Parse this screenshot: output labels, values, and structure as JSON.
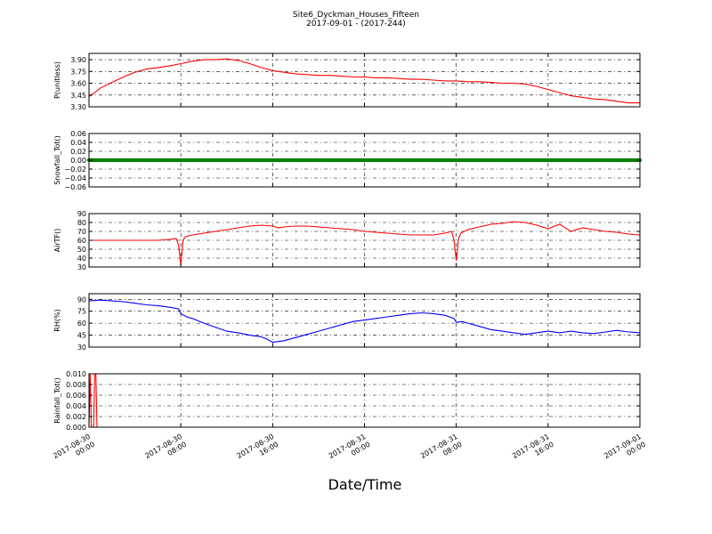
{
  "figure": {
    "title_line1": "Site6_Dyckman_Houses_Fifteen",
    "title_line2": "2017-09-01 - (2017-244)",
    "xlabel": "Date/Time",
    "x_tick_labels": [
      [
        "2017-08-30",
        "00:00"
      ],
      [
        "2017-08-30",
        "08:00"
      ],
      [
        "2017-08-30",
        "16:00"
      ],
      [
        "2017-08-31",
        "00:00"
      ],
      [
        "2017-08-31",
        "08:00"
      ],
      [
        "2017-08-31",
        "16:00"
      ],
      [
        "2017-09-01",
        "00:00"
      ]
    ]
  },
  "chart_data": [
    {
      "type": "line",
      "ylabel": "P(unitless)",
      "color": "#ff0000",
      "ylim": [
        3.3,
        3.98
      ],
      "yticks": [
        3.3,
        3.45,
        3.6,
        3.75,
        3.9
      ],
      "ytick_labels": [
        "3.30",
        "3.45",
        "3.60",
        "3.75",
        "3.90"
      ],
      "xlim_hours": [
        0,
        48
      ],
      "x": [
        0,
        0.5,
        1,
        2,
        3,
        4,
        5,
        6,
        7,
        8,
        9,
        10,
        11,
        12,
        13,
        14,
        15,
        16,
        17,
        18,
        19,
        20,
        21,
        22,
        23,
        24,
        25,
        26,
        27,
        28,
        29,
        30,
        31,
        32,
        33,
        34,
        35,
        36,
        37,
        38,
        39,
        40,
        41,
        42,
        43,
        44,
        45,
        46,
        47,
        48
      ],
      "values": [
        3.43,
        3.48,
        3.54,
        3.61,
        3.68,
        3.74,
        3.78,
        3.8,
        3.82,
        3.85,
        3.88,
        3.9,
        3.9,
        3.91,
        3.89,
        3.85,
        3.8,
        3.76,
        3.74,
        3.72,
        3.71,
        3.7,
        3.7,
        3.69,
        3.68,
        3.68,
        3.67,
        3.67,
        3.66,
        3.65,
        3.65,
        3.64,
        3.63,
        3.63,
        3.62,
        3.62,
        3.61,
        3.6,
        3.6,
        3.59,
        3.56,
        3.52,
        3.48,
        3.44,
        3.42,
        3.4,
        3.39,
        3.37,
        3.35,
        3.35
      ]
    },
    {
      "type": "scatter",
      "ylabel": "Snowfall_Tot()",
      "color": "#008000",
      "ylim": [
        -0.06,
        0.06
      ],
      "yticks": [
        -0.06,
        -0.04,
        -0.02,
        0.0,
        0.02,
        0.04,
        0.06
      ],
      "ytick_labels": [
        "−0.06",
        "−0.04",
        "−0.02",
        "0.00",
        "0.02",
        "0.04",
        "0.06"
      ],
      "xlim_hours": [
        0,
        48
      ],
      "x": [
        0,
        48
      ],
      "values": [
        0.0,
        0.0
      ]
    },
    {
      "type": "line",
      "ylabel": "AirTF()",
      "color": "#ff0000",
      "ylim": [
        30,
        90
      ],
      "yticks": [
        30,
        40,
        50,
        60,
        70,
        80,
        90
      ],
      "ytick_labels": [
        "30",
        "40",
        "50",
        "60",
        "70",
        "80",
        "90"
      ],
      "xlim_hours": [
        0,
        48
      ],
      "x": [
        0,
        1,
        2,
        3,
        4,
        5,
        6,
        7,
        7.6,
        7.8,
        8.0,
        8.2,
        8.4,
        9,
        10,
        11,
        12,
        13,
        14,
        15,
        16,
        16.5,
        17,
        18,
        19,
        20,
        21,
        22,
        23,
        24,
        25,
        26,
        27,
        28,
        29,
        30,
        31,
        31.6,
        31.8,
        32.0,
        32.2,
        32.4,
        33,
        34,
        35,
        36,
        37,
        38,
        39,
        40,
        41,
        42,
        43,
        44,
        45,
        46,
        47,
        48
      ],
      "values": [
        60,
        60,
        60,
        60,
        60,
        60,
        60,
        61,
        62,
        55,
        32,
        60,
        64,
        66,
        68,
        70,
        72,
        74,
        76,
        77,
        76,
        74,
        75,
        76,
        76,
        75,
        74,
        73,
        72,
        70,
        69,
        68,
        67,
        66,
        66,
        66,
        68,
        70,
        60,
        37,
        62,
        68,
        72,
        75,
        78,
        79,
        81,
        80,
        77,
        73,
        78,
        70,
        74,
        72,
        70,
        69,
        67,
        66
      ]
    },
    {
      "type": "line",
      "ylabel": "RH(%)",
      "color": "#0000ff",
      "ylim": [
        30,
        97
      ],
      "yticks": [
        30,
        45,
        60,
        75,
        90
      ],
      "ytick_labels": [
        "30",
        "45",
        "60",
        "75",
        "90"
      ],
      "xlim_hours": [
        0,
        48
      ],
      "x": [
        0,
        1,
        2,
        3,
        4,
        5,
        6,
        7,
        7.8,
        8.0,
        8.5,
        9,
        10,
        11,
        12,
        13,
        14,
        15,
        15.5,
        16,
        17,
        18,
        19,
        20,
        21,
        22,
        23,
        24,
        25,
        26,
        27,
        28,
        29,
        30,
        31,
        31.8,
        32.0,
        32.5,
        33,
        34,
        35,
        36,
        37,
        38,
        39,
        40,
        41,
        42,
        43,
        44,
        45,
        46,
        47,
        48
      ],
      "values": [
        88,
        89,
        88,
        87,
        85,
        83,
        82,
        80,
        78,
        72,
        68,
        66,
        60,
        55,
        50,
        48,
        45,
        43,
        40,
        36,
        38,
        42,
        46,
        50,
        54,
        58,
        62,
        64,
        66,
        68,
        70,
        72,
        73,
        72,
        70,
        66,
        61,
        62,
        60,
        56,
        52,
        50,
        48,
        46,
        48,
        50,
        48,
        50,
        48,
        47,
        49,
        51,
        49,
        48
      ]
    },
    {
      "type": "line",
      "ylabel": "Rainfall_Tot()",
      "color": "#ff0000",
      "ylim": [
        0.0,
        0.01
      ],
      "yticks": [
        0.0,
        0.002,
        0.004,
        0.006,
        0.008,
        0.01
      ],
      "ytick_labels": [
        "0.000",
        "0.002",
        "0.004",
        "0.006",
        "0.008",
        "0.010"
      ],
      "xlim_hours": [
        0,
        48
      ],
      "x": [
        0,
        0.1,
        0.2,
        0.3,
        0.4,
        0.5,
        0.6,
        0.7,
        48
      ],
      "values": [
        0.0,
        0.01,
        0.0,
        0.0,
        0.0,
        0.01,
        0.01,
        0.0,
        0.0
      ]
    }
  ]
}
